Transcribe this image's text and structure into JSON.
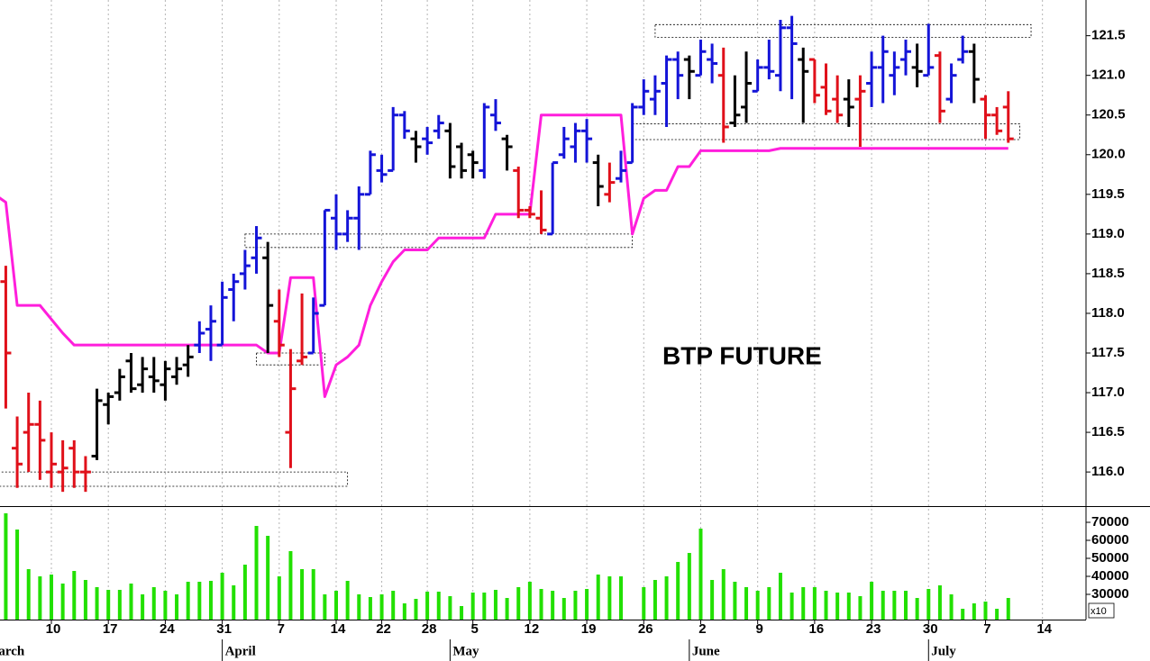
{
  "chart_data": {
    "type": "ohlc",
    "title": "BTP FUTURE",
    "grid": true,
    "categories": [
      null,
      null,
      null,
      null,
      "10",
      null,
      null,
      null,
      null,
      "17",
      null,
      null,
      null,
      null,
      "24",
      null,
      null,
      null,
      null,
      "31",
      null,
      null,
      null,
      null,
      "7",
      null,
      null,
      null,
      null,
      "14",
      null,
      null,
      null,
      "22",
      null,
      null,
      null,
      "28",
      null,
      null,
      null,
      "5",
      null,
      null,
      null,
      null,
      "12",
      null,
      null,
      null,
      null,
      "19",
      null,
      null,
      null,
      null,
      "26",
      null,
      null,
      null,
      null,
      "2",
      null,
      null,
      null,
      null,
      "9",
      null,
      null,
      null,
      null,
      "16",
      null,
      null,
      null,
      null,
      "23",
      null,
      null,
      null,
      null,
      "30",
      null,
      null,
      null,
      null,
      "7",
      null,
      null,
      null,
      null,
      "14"
    ],
    "months": [
      {
        "value": -2,
        "label": "March"
      },
      {
        "value": 19,
        "label": "April"
      },
      {
        "value": 39,
        "label": "May"
      },
      {
        "value": 60,
        "label": "June"
      },
      {
        "value": 81,
        "label": "July"
      }
    ],
    "open": [
      118.4,
      116.3,
      116.5,
      116.6,
      116.0,
      116.0,
      116.3,
      116.0,
      116.2,
      116.85,
      117.0,
      117.4,
      117.1,
      117.2,
      117.1,
      117.2,
      117.35,
      117.6,
      117.8,
      117.6,
      118.3,
      118.5,
      118.7,
      118.7,
      117.9,
      116.5,
      117.4,
      117.5,
      118.1,
      119.2,
      119.0,
      119.2,
      119.5,
      119.8,
      119.8,
      120.5,
      120.2,
      120.2,
      120.3,
      120.3,
      120.1,
      120.0,
      119.8,
      120.5,
      120.2,
      119.8,
      119.3,
      119.2,
      119.0,
      120.0,
      120.1,
      120.3,
      119.9,
      119.5,
      119.7,
      119.9,
      120.6,
      120.7,
      120.9,
      121.2,
      121.2,
      121.0,
      121.2,
      121.0,
      120.4,
      120.6,
      120.8,
      121.1,
      121.0,
      121.6,
      121.2,
      121.2,
      120.85,
      120.7,
      120.7,
      120.7,
      120.9,
      121.1,
      121.0,
      121.2,
      121.1,
      121.0,
      121.25,
      120.7,
      121.2,
      121.3,
      120.7,
      120.5,
      120.6,
      null,
      null,
      null
    ],
    "high": [
      118.6,
      116.7,
      117.0,
      116.9,
      116.5,
      116.4,
      116.4,
      116.2,
      117.05,
      117.0,
      117.3,
      117.5,
      117.45,
      117.45,
      117.4,
      117.45,
      117.6,
      117.9,
      118.1,
      118.4,
      118.5,
      118.8,
      119.1,
      118.9,
      118.3,
      117.55,
      118.25,
      118.2,
      119.3,
      119.5,
      119.3,
      119.6,
      120.05,
      120.0,
      120.6,
      120.55,
      120.3,
      120.35,
      120.5,
      120.4,
      120.15,
      120.05,
      120.65,
      120.7,
      120.25,
      119.85,
      119.35,
      119.55,
      119.9,
      120.35,
      120.4,
      120.45,
      120.0,
      119.9,
      120.05,
      120.65,
      120.95,
      121.0,
      121.25,
      121.3,
      121.25,
      121.45,
      121.4,
      121.35,
      121.0,
      121.3,
      121.2,
      121.45,
      121.7,
      121.75,
      121.35,
      121.2,
      121.15,
      121.0,
      120.95,
      121.0,
      121.3,
      121.5,
      121.3,
      121.45,
      121.4,
      121.65,
      121.3,
      121.15,
      121.5,
      121.4,
      120.75,
      120.6,
      120.8,
      null,
      null,
      null
    ],
    "low": [
      116.8,
      115.8,
      116.0,
      115.9,
      115.8,
      115.75,
      115.8,
      115.75,
      116.15,
      116.6,
      116.9,
      117.0,
      117.0,
      117.0,
      116.9,
      117.1,
      117.2,
      117.5,
      117.4,
      117.6,
      117.9,
      118.3,
      118.5,
      117.5,
      117.45,
      116.05,
      117.35,
      117.5,
      118.1,
      118.8,
      118.9,
      118.8,
      119.5,
      119.65,
      119.8,
      120.2,
      119.9,
      120.0,
      120.2,
      119.7,
      119.7,
      119.7,
      119.7,
      120.3,
      119.8,
      119.2,
      119.2,
      119.0,
      119.0,
      119.95,
      119.9,
      119.9,
      119.35,
      119.4,
      119.65,
      119.9,
      120.5,
      120.5,
      120.35,
      120.7,
      120.7,
      121.0,
      120.9,
      120.15,
      120.35,
      120.4,
      120.8,
      120.95,
      120.8,
      120.7,
      120.4,
      120.65,
      120.5,
      120.4,
      120.35,
      120.1,
      120.6,
      120.65,
      120.75,
      121.0,
      120.85,
      121.0,
      120.4,
      120.65,
      121.15,
      120.65,
      120.2,
      120.25,
      120.15,
      null,
      null,
      null
    ],
    "close": [
      117.5,
      116.1,
      116.6,
      116.4,
      116.1,
      116.05,
      116.0,
      116.0,
      116.9,
      116.95,
      117.2,
      117.05,
      117.3,
      117.15,
      117.3,
      117.3,
      117.45,
      117.75,
      117.9,
      118.2,
      118.4,
      118.6,
      118.95,
      118.1,
      117.6,
      117.05,
      117.45,
      118.0,
      119.3,
      119.0,
      119.2,
      119.5,
      120.0,
      119.75,
      120.5,
      120.3,
      120.1,
      120.15,
      120.4,
      119.85,
      119.8,
      119.9,
      120.6,
      120.4,
      120.1,
      119.3,
      119.25,
      119.05,
      119.9,
      120.2,
      120.3,
      120.2,
      119.6,
      119.65,
      119.8,
      120.6,
      120.8,
      120.8,
      121.2,
      121.0,
      121.05,
      121.3,
      121.15,
      120.35,
      120.5,
      120.9,
      121.1,
      121.05,
      121.6,
      121.4,
      121.05,
      120.75,
      120.55,
      120.5,
      120.6,
      120.8,
      121.1,
      121.3,
      121.1,
      121.3,
      121.05,
      121.1,
      120.55,
      121.0,
      121.3,
      120.95,
      120.5,
      120.3,
      120.2,
      null,
      null,
      null
    ],
    "bar_colors": [
      "#e0101a",
      "#e0101a",
      "#e0101a",
      "#e0101a",
      "#e0101a",
      "#e0101a",
      "#e0101a",
      "#e0101a",
      "#000000",
      "#000000",
      "#000000",
      "#000000",
      "#000000",
      "#000000",
      "#000000",
      "#000000",
      "#000000",
      "#1414d8",
      "#1414d8",
      "#1414d8",
      "#1414d8",
      "#1414d8",
      "#1414d8",
      "#000000",
      "#e0101a",
      "#e0101a",
      "#e0101a",
      "#1414d8",
      "#1414d8",
      "#1414d8",
      "#1414d8",
      "#1414d8",
      "#1414d8",
      "#1414d8",
      "#1414d8",
      "#1414d8",
      "#000000",
      "#1414d8",
      "#1414d8",
      "#000000",
      "#000000",
      "#000000",
      "#1414d8",
      "#1414d8",
      "#000000",
      "#e0101a",
      "#e0101a",
      "#e0101a",
      "#1414d8",
      "#1414d8",
      "#1414d8",
      "#1414d8",
      "#000000",
      "#e0101a",
      "#1414d8",
      "#1414d8",
      "#1414d8",
      "#1414d8",
      "#1414d8",
      "#1414d8",
      "#000000",
      "#1414d8",
      "#1414d8",
      "#e0101a",
      "#000000",
      "#000000",
      "#1414d8",
      "#1414d8",
      "#1414d8",
      "#1414d8",
      "#000000",
      "#e0101a",
      "#e0101a",
      "#e0101a",
      "#000000",
      "#e0101a",
      "#1414d8",
      "#1414d8",
      "#1414d8",
      "#1414d8",
      "#000000",
      "#1414d8",
      "#e0101a",
      "#1414d8",
      "#1414d8",
      "#000000",
      "#e0101a",
      "#e0101a",
      "#e0101a",
      null,
      null,
      null
    ],
    "ylim": [
      115.57,
      121.95
    ],
    "yticks": [
      {
        "value": 116,
        "label": "116.0"
      },
      116.5,
      {
        "value": 117,
        "label": "117.0"
      },
      117.5,
      {
        "value": 118,
        "label": "118.0"
      },
      118.5,
      {
        "value": 119,
        "label": "119.0"
      },
      119.5,
      {
        "value": 120,
        "label": "120.0"
      },
      120.5,
      {
        "value": 121,
        "label": "121.0"
      },
      121.5
    ],
    "overlay": {
      "type": "line",
      "color": "#ff1edc",
      "x": [
        -1,
        0,
        1,
        3,
        5,
        6,
        22,
        23,
        24,
        25,
        27,
        28,
        29,
        30,
        31,
        32,
        33,
        34,
        35,
        37,
        38,
        42,
        43,
        46,
        47,
        54,
        55,
        56,
        57,
        58,
        59,
        60,
        61,
        67,
        68,
        88
      ],
      "values": [
        119.5,
        119.4,
        118.1,
        118.1,
        117.75,
        117.6,
        117.6,
        117.5,
        117.5,
        118.45,
        118.45,
        116.95,
        117.35,
        117.45,
        117.6,
        118.1,
        118.4,
        118.65,
        118.8,
        118.8,
        118.95,
        118.95,
        119.25,
        119.25,
        120.5,
        120.5,
        119.0,
        119.45,
        119.55,
        119.55,
        119.85,
        119.85,
        120.05,
        120.05,
        120.08,
        120.08
      ]
    },
    "boxes": [
      {
        "x": [
          -1,
          30
        ],
        "y": [
          115.82,
          116.0
        ]
      },
      {
        "x": [
          22,
          28
        ],
        "y": [
          117.35,
          117.5
        ]
      },
      {
        "x": [
          21,
          55
        ],
        "y": [
          118.83,
          119.0
        ]
      },
      {
        "x": [
          55,
          89
        ],
        "y": [
          120.19,
          120.39
        ]
      },
      {
        "x": [
          57,
          90
        ],
        "y": [
          121.48,
          121.64
        ]
      }
    ],
    "volume": {
      "type": "bar",
      "color": "#22e000",
      "unit_label": "x10",
      "ylim": [
        16000,
        78500
      ],
      "yticks": [
        30000,
        40000,
        50000,
        60000,
        70000
      ],
      "values": [
        75000,
        66000,
        44000,
        40000,
        41000,
        36000,
        43000,
        38000,
        34000,
        32500,
        32500,
        36000,
        30000,
        34000,
        32000,
        30000,
        37000,
        37000,
        37500,
        42000,
        35000,
        46500,
        68000,
        62500,
        40000,
        54000,
        44000,
        44000,
        30000,
        32000,
        37500,
        30000,
        28500,
        30000,
        32000,
        25000,
        27500,
        31500,
        31500,
        29000,
        23500,
        31000,
        31000,
        32500,
        28000,
        34000,
        37000,
        33000,
        32000,
        28000,
        32000,
        33000,
        41000,
        40000,
        40000,
        null,
        34000,
        38000,
        40000,
        48000,
        53000,
        66500,
        38000,
        44000,
        37000,
        34000,
        32000,
        34000,
        42000,
        31000,
        34000,
        34000,
        32000,
        31000,
        31000,
        29000,
        37000,
        32000,
        32000,
        32000,
        28000,
        33000,
        35000,
        30000,
        22000,
        25000,
        26000,
        22000,
        28000,
        null,
        null,
        null
      ]
    }
  }
}
